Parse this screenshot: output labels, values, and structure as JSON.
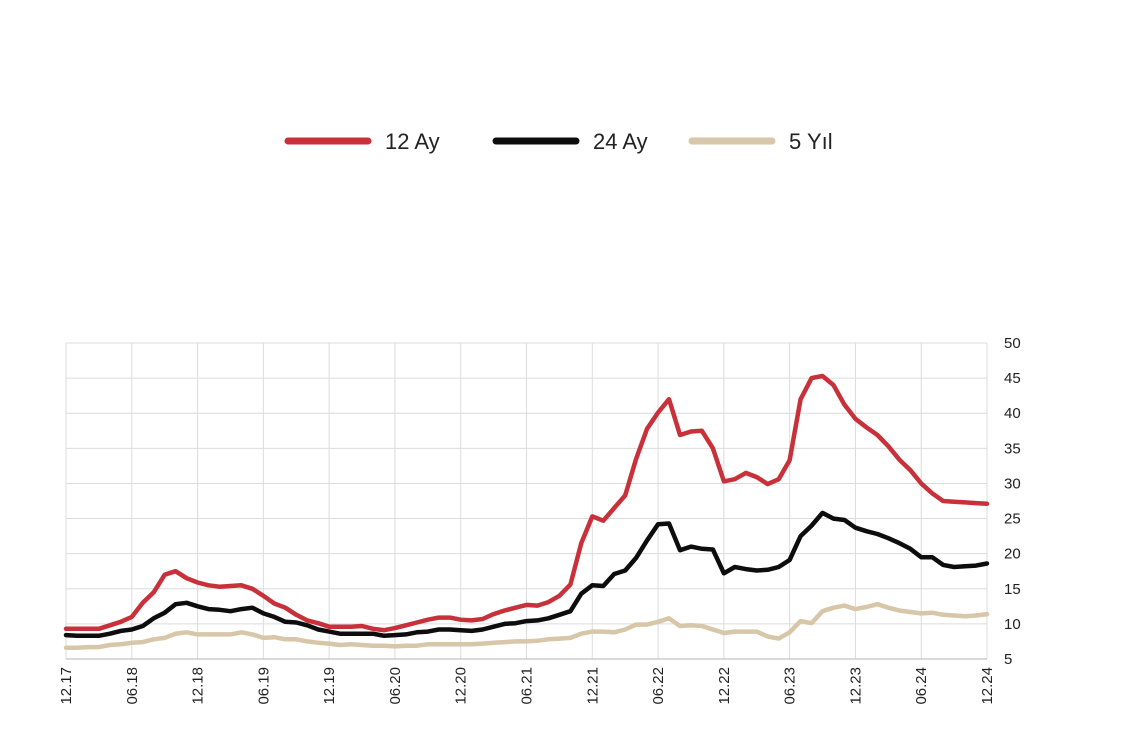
{
  "chart_data": {
    "type": "line",
    "title": "",
    "xlabel": "",
    "ylabel": "",
    "ylim": [
      5,
      50
    ],
    "yticks": [
      5,
      10,
      15,
      20,
      25,
      30,
      35,
      40,
      45,
      50
    ],
    "x_tick_labels": [
      "12.17",
      "06.18",
      "12.18",
      "06.19",
      "12.19",
      "06.20",
      "12.20",
      "06.21",
      "12.21",
      "06.22",
      "12.22",
      "06.23",
      "12.23",
      "06.24",
      "12.24"
    ],
    "grid": true,
    "legend_position": "top-center",
    "x_start": "2017-12",
    "x_end": "2024-12",
    "series": [
      {
        "name": "12 Ay",
        "color": "#c8303a",
        "points": [
          [
            0,
            9.3
          ],
          [
            1,
            9.3
          ],
          [
            2,
            9.3
          ],
          [
            3,
            9.3
          ],
          [
            4,
            9.8
          ],
          [
            5,
            10.3
          ],
          [
            6,
            11.0
          ],
          [
            7,
            13.0
          ],
          [
            8,
            14.5
          ],
          [
            9,
            17.0
          ],
          [
            10,
            17.5
          ],
          [
            11,
            16.5
          ],
          [
            12,
            15.9
          ],
          [
            13,
            15.5
          ],
          [
            14,
            15.3
          ],
          [
            15,
            15.4
          ],
          [
            16,
            15.5
          ],
          [
            17,
            15.0
          ],
          [
            18,
            14.0
          ],
          [
            19,
            12.9
          ],
          [
            20,
            12.3
          ],
          [
            21,
            11.3
          ],
          [
            22,
            10.5
          ],
          [
            23,
            10.1
          ],
          [
            24,
            9.6
          ],
          [
            25,
            9.6
          ],
          [
            26,
            9.6
          ],
          [
            27,
            9.7
          ],
          [
            28,
            9.3
          ],
          [
            29,
            9.1
          ],
          [
            30,
            9.4
          ],
          [
            31,
            9.8
          ],
          [
            32,
            10.2
          ],
          [
            33,
            10.6
          ],
          [
            34,
            10.9
          ],
          [
            35,
            10.9
          ],
          [
            36,
            10.6
          ],
          [
            37,
            10.5
          ],
          [
            38,
            10.7
          ],
          [
            39,
            11.4
          ],
          [
            40,
            11.9
          ],
          [
            41,
            12.3
          ],
          [
            42,
            12.7
          ],
          [
            43,
            12.6
          ],
          [
            44,
            13.1
          ],
          [
            45,
            14.0
          ],
          [
            46,
            15.6
          ],
          [
            47,
            21.5
          ],
          [
            48,
            25.3
          ],
          [
            49,
            24.7
          ],
          [
            50,
            26.5
          ],
          [
            51,
            28.3
          ],
          [
            52,
            33.5
          ],
          [
            53,
            37.8
          ],
          [
            54,
            40.1
          ],
          [
            55,
            42.0
          ],
          [
            56,
            36.9
          ],
          [
            57,
            37.4
          ],
          [
            58,
            37.5
          ],
          [
            59,
            35.0
          ],
          [
            60,
            30.3
          ],
          [
            61,
            30.6
          ],
          [
            62,
            31.5
          ],
          [
            63,
            30.9
          ],
          [
            64,
            29.9
          ],
          [
            65,
            30.6
          ],
          [
            66,
            33.3
          ],
          [
            67,
            42.0
          ],
          [
            68,
            45.0
          ],
          [
            69,
            45.3
          ],
          [
            70,
            44.0
          ],
          [
            71,
            41.2
          ],
          [
            72,
            39.2
          ],
          [
            73,
            38.0
          ],
          [
            74,
            36.9
          ],
          [
            75,
            35.3
          ],
          [
            76,
            33.4
          ],
          [
            77,
            31.9
          ],
          [
            78,
            30.0
          ],
          [
            79,
            28.6
          ],
          [
            80,
            27.5
          ],
          [
            81,
            27.4
          ],
          [
            82,
            27.3
          ],
          [
            83,
            27.2
          ],
          [
            84,
            27.1
          ]
        ]
      },
      {
        "name": "24 Ay",
        "color": "#0d0d0d",
        "points": [
          [
            0,
            8.4
          ],
          [
            1,
            8.3
          ],
          [
            2,
            8.3
          ],
          [
            3,
            8.3
          ],
          [
            4,
            8.6
          ],
          [
            5,
            9.0
          ],
          [
            6,
            9.2
          ],
          [
            7,
            9.7
          ],
          [
            8,
            10.8
          ],
          [
            9,
            11.6
          ],
          [
            10,
            12.8
          ],
          [
            11,
            13.0
          ],
          [
            12,
            12.5
          ],
          [
            13,
            12.1
          ],
          [
            14,
            12.0
          ],
          [
            15,
            11.8
          ],
          [
            16,
            12.1
          ],
          [
            17,
            12.3
          ],
          [
            18,
            11.5
          ],
          [
            19,
            11.0
          ],
          [
            20,
            10.3
          ],
          [
            21,
            10.2
          ],
          [
            22,
            9.8
          ],
          [
            23,
            9.2
          ],
          [
            24,
            8.9
          ],
          [
            25,
            8.6
          ],
          [
            26,
            8.6
          ],
          [
            27,
            8.6
          ],
          [
            28,
            8.6
          ],
          [
            29,
            8.3
          ],
          [
            30,
            8.4
          ],
          [
            31,
            8.5
          ],
          [
            32,
            8.8
          ],
          [
            33,
            8.9
          ],
          [
            34,
            9.2
          ],
          [
            35,
            9.2
          ],
          [
            36,
            9.1
          ],
          [
            37,
            9.0
          ],
          [
            38,
            9.2
          ],
          [
            39,
            9.6
          ],
          [
            40,
            10.0
          ],
          [
            41,
            10.1
          ],
          [
            42,
            10.4
          ],
          [
            43,
            10.5
          ],
          [
            44,
            10.8
          ],
          [
            45,
            11.3
          ],
          [
            46,
            11.8
          ],
          [
            47,
            14.3
          ],
          [
            48,
            15.5
          ],
          [
            49,
            15.4
          ],
          [
            50,
            17.1
          ],
          [
            51,
            17.6
          ],
          [
            52,
            19.4
          ],
          [
            53,
            21.9
          ],
          [
            54,
            24.2
          ],
          [
            55,
            24.3
          ],
          [
            56,
            20.5
          ],
          [
            57,
            21.0
          ],
          [
            58,
            20.7
          ],
          [
            59,
            20.6
          ],
          [
            60,
            17.2
          ],
          [
            61,
            18.1
          ],
          [
            62,
            17.8
          ],
          [
            63,
            17.6
          ],
          [
            64,
            17.7
          ],
          [
            65,
            18.1
          ],
          [
            66,
            19.1
          ],
          [
            67,
            22.5
          ],
          [
            68,
            24.0
          ],
          [
            69,
            25.8
          ],
          [
            70,
            25.0
          ],
          [
            71,
            24.8
          ],
          [
            72,
            23.7
          ],
          [
            73,
            23.2
          ],
          [
            74,
            22.8
          ],
          [
            75,
            22.2
          ],
          [
            76,
            21.5
          ],
          [
            77,
            20.7
          ],
          [
            78,
            19.5
          ],
          [
            79,
            19.5
          ],
          [
            80,
            18.4
          ],
          [
            81,
            18.1
          ],
          [
            82,
            18.2
          ],
          [
            83,
            18.3
          ],
          [
            84,
            18.6
          ]
        ]
      },
      {
        "name": "5 Yıl",
        "color": "#d8c6a8",
        "points": [
          [
            0,
            6.6
          ],
          [
            1,
            6.6
          ],
          [
            2,
            6.7
          ],
          [
            3,
            6.7
          ],
          [
            4,
            7.0
          ],
          [
            5,
            7.1
          ],
          [
            6,
            7.3
          ],
          [
            7,
            7.4
          ],
          [
            8,
            7.8
          ],
          [
            9,
            8.0
          ],
          [
            10,
            8.6
          ],
          [
            11,
            8.8
          ],
          [
            12,
            8.5
          ],
          [
            13,
            8.5
          ],
          [
            14,
            8.5
          ],
          [
            15,
            8.5
          ],
          [
            16,
            8.8
          ],
          [
            17,
            8.5
          ],
          [
            18,
            8.0
          ],
          [
            19,
            8.1
          ],
          [
            20,
            7.8
          ],
          [
            21,
            7.8
          ],
          [
            22,
            7.5
          ],
          [
            23,
            7.3
          ],
          [
            24,
            7.2
          ],
          [
            25,
            7.0
          ],
          [
            26,
            7.1
          ],
          [
            27,
            7.0
          ],
          [
            28,
            6.9
          ],
          [
            29,
            6.9
          ],
          [
            30,
            6.8
          ],
          [
            31,
            6.9
          ],
          [
            32,
            6.9
          ],
          [
            33,
            7.1
          ],
          [
            34,
            7.1
          ],
          [
            35,
            7.1
          ],
          [
            36,
            7.1
          ],
          [
            37,
            7.1
          ],
          [
            38,
            7.2
          ],
          [
            39,
            7.3
          ],
          [
            40,
            7.4
          ],
          [
            41,
            7.5
          ],
          [
            42,
            7.5
          ],
          [
            43,
            7.6
          ],
          [
            44,
            7.8
          ],
          [
            45,
            7.9
          ],
          [
            46,
            8.0
          ],
          [
            47,
            8.6
          ],
          [
            48,
            8.9
          ],
          [
            49,
            8.9
          ],
          [
            50,
            8.8
          ],
          [
            51,
            9.2
          ],
          [
            52,
            9.9
          ],
          [
            53,
            9.9
          ],
          [
            54,
            10.3
          ],
          [
            55,
            10.8
          ],
          [
            56,
            9.7
          ],
          [
            57,
            9.8
          ],
          [
            58,
            9.7
          ],
          [
            59,
            9.2
          ],
          [
            60,
            8.7
          ],
          [
            61,
            8.9
          ],
          [
            62,
            8.9
          ],
          [
            63,
            8.9
          ],
          [
            64,
            8.2
          ],
          [
            65,
            7.9
          ],
          [
            66,
            8.8
          ],
          [
            67,
            10.4
          ],
          [
            68,
            10.1
          ],
          [
            69,
            11.8
          ],
          [
            70,
            12.3
          ],
          [
            71,
            12.6
          ],
          [
            72,
            12.1
          ],
          [
            73,
            12.4
          ],
          [
            74,
            12.8
          ],
          [
            75,
            12.3
          ],
          [
            76,
            11.9
          ],
          [
            77,
            11.7
          ],
          [
            78,
            11.5
          ],
          [
            79,
            11.6
          ],
          [
            80,
            11.3
          ],
          [
            81,
            11.2
          ],
          [
            82,
            11.1
          ],
          [
            83,
            11.2
          ],
          [
            84,
            11.4
          ]
        ]
      }
    ]
  }
}
